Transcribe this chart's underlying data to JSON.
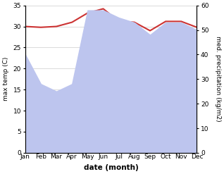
{
  "months": [
    "Jan",
    "Feb",
    "Mar",
    "Apr",
    "May",
    "Jun",
    "Jul",
    "Aug",
    "Sep",
    "Oct",
    "Nov",
    "Dec"
  ],
  "max_temp": [
    30.0,
    29.8,
    30.0,
    31.0,
    33.2,
    34.2,
    31.2,
    31.0,
    29.0,
    31.2,
    31.2,
    29.8
  ],
  "precipitation": [
    40,
    28,
    25,
    28,
    58,
    58,
    55,
    53,
    48,
    53,
    53,
    50
  ],
  "temp_color": "#cc3333",
  "precip_fill_color": "#bdc5ee",
  "temp_ylim": [
    0,
    35
  ],
  "precip_ylim": [
    0,
    60
  ],
  "temp_yticks": [
    0,
    5,
    10,
    15,
    20,
    25,
    30,
    35
  ],
  "precip_yticks": [
    0,
    10,
    20,
    30,
    40,
    50,
    60
  ],
  "ylabel_left": "max temp (C)",
  "ylabel_right": "med. precipitation (kg/m2)",
  "xlabel": "date (month)",
  "grid_color": "#cccccc",
  "fig_width": 3.18,
  "fig_height": 2.47,
  "dpi": 100
}
